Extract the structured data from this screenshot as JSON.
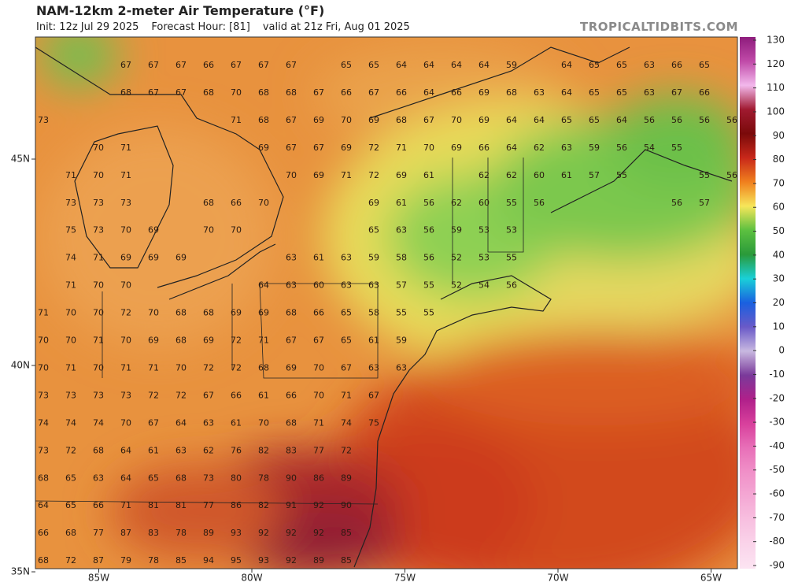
{
  "header": {
    "title": "NAM-12km 2-meter Air Temperature (°F)",
    "init": "Init: 12z Jul 29 2025",
    "forecast_hour": "Forecast Hour: [81]",
    "valid": "valid at 21z Fri, Aug 01 2025",
    "source": "TROPICALTIDBITS.COM"
  },
  "map": {
    "lat_ticks": [
      {
        "value": 45,
        "label": "45N"
      },
      {
        "value": 40,
        "label": "40N"
      },
      {
        "value": 35,
        "label": "35N"
      }
    ],
    "lon_ticks": [
      {
        "value": -85,
        "label": "85W"
      },
      {
        "value": -80,
        "label": "80W"
      },
      {
        "value": -75,
        "label": "75W"
      },
      {
        "value": -70,
        "label": "70W"
      },
      {
        "value": -65,
        "label": "65W"
      }
    ],
    "temperature_grid": [
      [
        null,
        null,
        null,
        67,
        67,
        67,
        66,
        67,
        67,
        67,
        null,
        65,
        65,
        64,
        64,
        64,
        64,
        59,
        null,
        64,
        65,
        65,
        63,
        66,
        65,
        null
      ],
      [
        null,
        null,
        null,
        68,
        67,
        67,
        68,
        70,
        68,
        68,
        67,
        66,
        67,
        66,
        64,
        66,
        69,
        68,
        63,
        64,
        65,
        65,
        63,
        67,
        66,
        null
      ],
      [
        73,
        null,
        null,
        null,
        null,
        null,
        null,
        71,
        68,
        67,
        69,
        70,
        69,
        68,
        67,
        70,
        69,
        64,
        64,
        65,
        65,
        64,
        56,
        56,
        56,
        56
      ],
      [
        null,
        null,
        70,
        71,
        null,
        null,
        null,
        null,
        69,
        67,
        67,
        69,
        72,
        71,
        70,
        69,
        66,
        64,
        62,
        63,
        59,
        56,
        54,
        55,
        null,
        null
      ],
      [
        null,
        71,
        70,
        71,
        null,
        null,
        null,
        null,
        null,
        70,
        69,
        71,
        72,
        69,
        61,
        null,
        62,
        62,
        60,
        61,
        57,
        55,
        null,
        null,
        55,
        56
      ],
      [
        null,
        73,
        73,
        73,
        null,
        null,
        68,
        66,
        70,
        null,
        null,
        null,
        69,
        61,
        56,
        62,
        60,
        55,
        56,
        null,
        null,
        null,
        null,
        56,
        57,
        null
      ],
      [
        null,
        75,
        73,
        70,
        69,
        null,
        70,
        70,
        null,
        null,
        null,
        null,
        65,
        63,
        56,
        59,
        53,
        53,
        null,
        null,
        null,
        null,
        null,
        null,
        null,
        null
      ],
      [
        null,
        74,
        71,
        69,
        69,
        69,
        null,
        null,
        null,
        63,
        61,
        63,
        59,
        58,
        56,
        52,
        53,
        55,
        null,
        null,
        null,
        null,
        null,
        null,
        null,
        null
      ],
      [
        null,
        71,
        70,
        70,
        null,
        null,
        null,
        null,
        64,
        63,
        60,
        63,
        63,
        57,
        55,
        52,
        54,
        56,
        null,
        null,
        null,
        null,
        null,
        null,
        null,
        null
      ],
      [
        71,
        70,
        70,
        72,
        70,
        68,
        68,
        69,
        69,
        68,
        66,
        65,
        58,
        55,
        55,
        null,
        null,
        null,
        null,
        null,
        null,
        null,
        null,
        null,
        null,
        null
      ],
      [
        70,
        70,
        71,
        70,
        69,
        68,
        69,
        72,
        71,
        67,
        67,
        65,
        61,
        59,
        null,
        null,
        null,
        null,
        null,
        null,
        null,
        null,
        null,
        null,
        null,
        null
      ],
      [
        70,
        71,
        70,
        71,
        71,
        70,
        72,
        72,
        68,
        69,
        70,
        67,
        63,
        63,
        null,
        null,
        null,
        null,
        null,
        null,
        null,
        null,
        null,
        null,
        null,
        null
      ],
      [
        73,
        73,
        73,
        73,
        72,
        72,
        67,
        66,
        61,
        66,
        70,
        71,
        67,
        null,
        null,
        null,
        null,
        null,
        null,
        null,
        null,
        null,
        null,
        null,
        null,
        null
      ],
      [
        74,
        74,
        74,
        70,
        67,
        64,
        63,
        61,
        70,
        68,
        71,
        74,
        75,
        null,
        null,
        null,
        null,
        null,
        null,
        null,
        null,
        null,
        null,
        null,
        null,
        null
      ],
      [
        73,
        72,
        68,
        64,
        61,
        63,
        62,
        76,
        82,
        83,
        77,
        72,
        null,
        null,
        null,
        null,
        null,
        null,
        null,
        null,
        null,
        null,
        null,
        null,
        null,
        null
      ],
      [
        68,
        65,
        63,
        64,
        65,
        68,
        73,
        80,
        78,
        90,
        86,
        89,
        null,
        null,
        null,
        null,
        null,
        null,
        null,
        null,
        null,
        null,
        null,
        null,
        null,
        null
      ],
      [
        64,
        65,
        66,
        71,
        81,
        81,
        77,
        86,
        82,
        91,
        92,
        90,
        null,
        null,
        null,
        null,
        null,
        null,
        null,
        null,
        null,
        null,
        null,
        null,
        null,
        null
      ],
      [
        66,
        68,
        77,
        87,
        83,
        78,
        89,
        93,
        92,
        92,
        92,
        85,
        null,
        null,
        null,
        null,
        null,
        null,
        null,
        null,
        null,
        null,
        null,
        null,
        null,
        null
      ],
      [
        68,
        72,
        87,
        79,
        78,
        85,
        94,
        95,
        93,
        92,
        89,
        85,
        null,
        null,
        null,
        null,
        null,
        null,
        null,
        null,
        null,
        null,
        null,
        null,
        null,
        null
      ]
    ]
  },
  "colorbar": {
    "ticks": [
      130,
      120,
      110,
      100,
      90,
      80,
      70,
      60,
      50,
      40,
      30,
      20,
      10,
      0,
      -10,
      -20,
      -30,
      -40,
      -50,
      -60,
      -70,
      -80,
      -90
    ],
    "colors": [
      "#8e1c7c",
      "#c04aa8",
      "#f2b8ec",
      "#a01a30",
      "#7a0a0a",
      "#c8281a",
      "#f0801e",
      "#f6e65a",
      "#5cc040",
      "#2a9a3a",
      "#1ad0d8",
      "#1a60e0",
      "#6a5ac8",
      "#c8b8e0",
      "#7a3a9a",
      "#b0208a",
      "#d8409c",
      "#e870b8",
      "#f090c8",
      "#f4a8d4",
      "#f8c0e0",
      "#fad4ea",
      "#fce4f2"
    ]
  }
}
